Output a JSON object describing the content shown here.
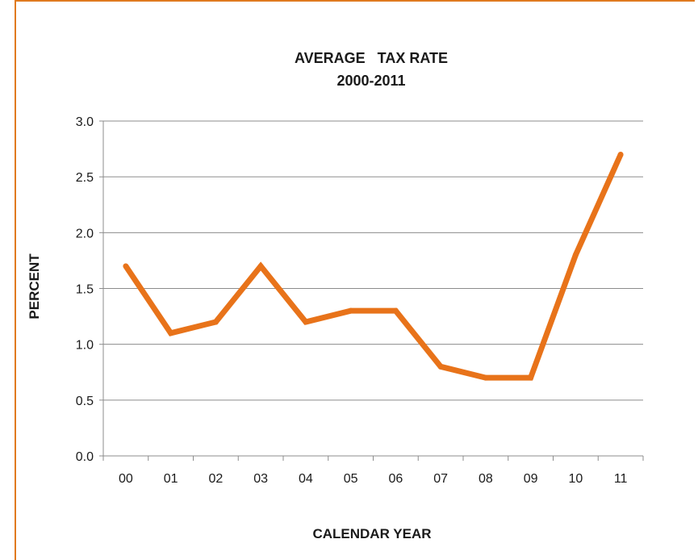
{
  "colors": {
    "frame": "#e07a1f",
    "line": "#e8731a",
    "grid": "#8c8c8c",
    "axis": "#8c8c8c",
    "text": "#1a1a1a"
  },
  "chart_data": {
    "type": "line",
    "title_line1": "AVERAGE   TAX RATE",
    "title_line2": "2000-2011",
    "xlabel": "CALENDAR YEAR",
    "ylabel": "PERCENT",
    "categories": [
      "00",
      "01",
      "02",
      "03",
      "04",
      "05",
      "06",
      "07",
      "08",
      "09",
      "10",
      "11"
    ],
    "series": [
      {
        "values": [
          1.7,
          1.1,
          1.2,
          1.7,
          1.2,
          1.3,
          1.3,
          0.8,
          0.7,
          0.7,
          1.8,
          2.7
        ]
      }
    ],
    "yticks": [
      "0.0",
      "0.5",
      "1.0",
      "1.5",
      "2.0",
      "2.5",
      "3.0"
    ],
    "ylim": [
      0,
      3
    ],
    "grid": true,
    "legend": "none"
  }
}
